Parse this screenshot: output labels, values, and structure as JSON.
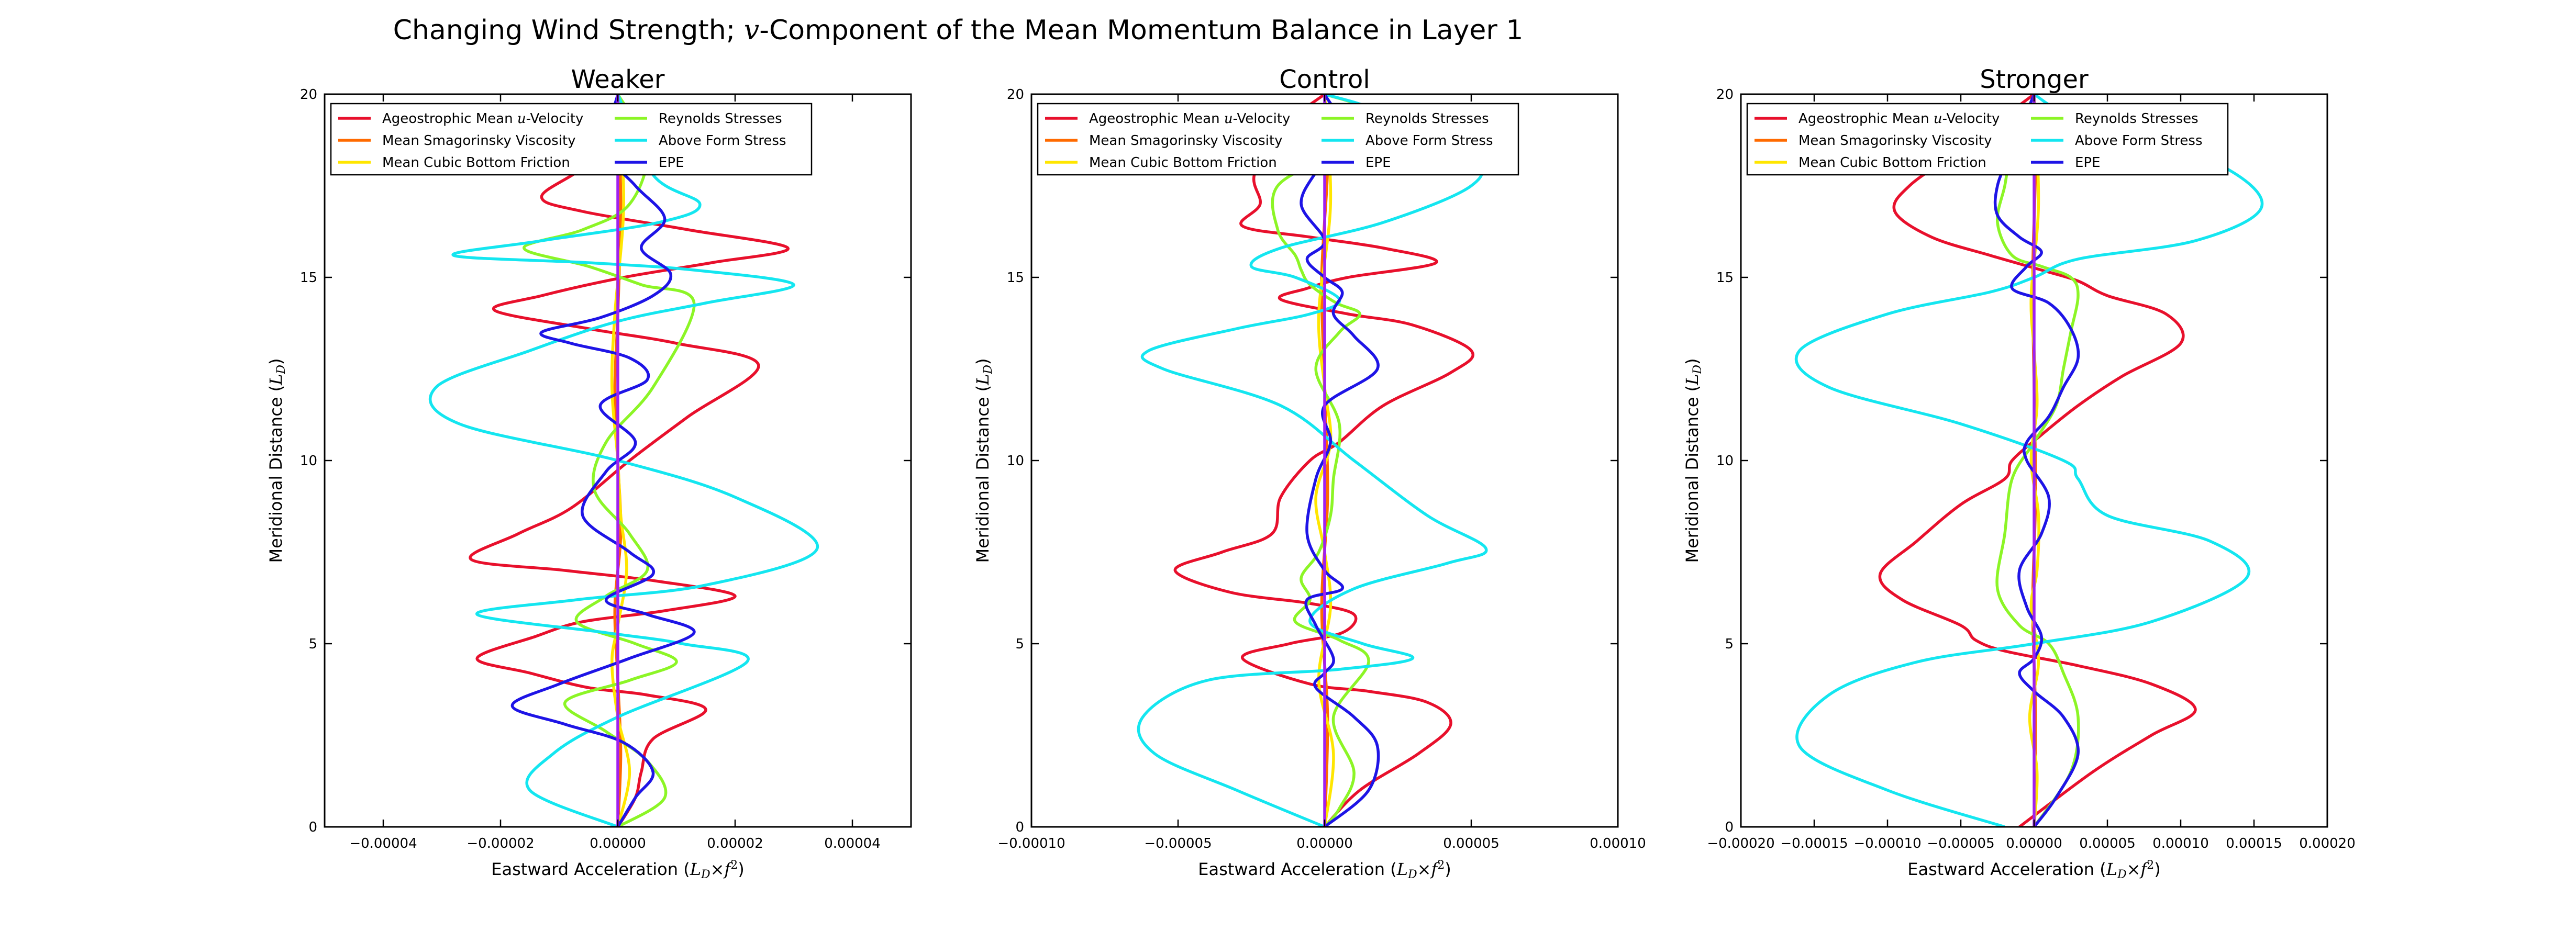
{
  "figure": {
    "title_pre": "Changing Wind Strength; ",
    "title_var": "v",
    "title_post": "-Component of the Mean Momentum Balance in Layer 1"
  },
  "colors": {
    "Ageostrophic Mean u-Velocity": "#e8102c",
    "Mean Smagorinsky Viscosity": "#ff6a00",
    "Mean Cubic Bottom Friction": "#ffe600",
    "Reynolds Stresses": "#8cf526",
    "Above Form Stress": "#14e6f0",
    "EPE": "#1e14e6",
    "zero": "#a020f0"
  },
  "chart_data": [
    {
      "type": "line",
      "title": "Weaker",
      "xlabel": "Eastward Acceleration",
      "xunit": "(L_D × f²)",
      "ylabel": "Meridional Distance",
      "yunit": "(L_D)",
      "xlim": [
        -5e-05,
        5e-05
      ],
      "ylim": [
        0,
        20
      ],
      "xticks": [
        -4e-05,
        -2e-05,
        0.0,
        2e-05,
        4e-05
      ],
      "xtick_labels": [
        "−0.00004",
        "−0.00002",
        "0.00000",
        "0.00002",
        "0.00004"
      ],
      "yticks": [
        0,
        5,
        10,
        15,
        20
      ],
      "ytick_labels": [
        "0",
        "5",
        "10",
        "15",
        "20"
      ],
      "legend_position": "top-left",
      "series": [
        {
          "name": "Ageostrophic Mean u-Velocity",
          "x_scaled": [
            0.0,
            0.3,
            0.4,
            0.6,
            1.5,
            0.5,
            -0.5,
            -1.5,
            -2.4,
            -1.4,
            -0.6,
            0.8,
            2.0,
            0.7,
            -0.9,
            -2.5,
            -1.7,
            -0.8,
            0.2,
            1.2,
            2.4,
            1.0,
            -0.5,
            -2.1,
            -1.3,
            0.1,
            1.6,
            2.9,
            1.2,
            -0.6,
            -1.3,
            -0.6,
            -0.1,
            0.0
          ],
          "y": [
            0.0,
            0.8,
            1.5,
            2.4,
            3.2,
            3.6,
            3.8,
            4.2,
            4.6,
            5.2,
            5.6,
            5.9,
            6.3,
            6.7,
            7.0,
            7.3,
            8.0,
            8.7,
            10.0,
            11.2,
            12.6,
            13.2,
            13.6,
            14.1,
            14.5,
            15.0,
            15.4,
            15.8,
            16.3,
            16.8,
            17.2,
            18.0,
            19.0,
            20.0
          ]
        },
        {
          "name": "Mean Smagorinsky Viscosity",
          "x_scaled": [
            0.0,
            0.05,
            0.0,
            -0.05,
            0.05,
            0.0,
            -0.05,
            0.0,
            0.05,
            0.0
          ],
          "y": [
            0.0,
            2.0,
            4.0,
            6.0,
            8.0,
            10.0,
            12.0,
            14.0,
            17.0,
            20.0
          ]
        },
        {
          "name": "Mean Cubic Bottom Friction",
          "x_scaled": [
            0.0,
            0.2,
            0.0,
            -0.1,
            0.0,
            0.15,
            0.05,
            0.0,
            -0.1,
            -0.05,
            0.1,
            0.0
          ],
          "y": [
            0.0,
            1.5,
            3.0,
            4.5,
            5.5,
            7.0,
            8.5,
            10.0,
            12.0,
            14.0,
            17.0,
            20.0
          ]
        },
        {
          "name": "Reynolds Stresses",
          "x_scaled": [
            0.0,
            0.8,
            0.5,
            -0.2,
            -0.9,
            0.2,
            1.0,
            0.3,
            -0.7,
            -0.2,
            0.5,
            0.2,
            -0.4,
            -0.2,
            0.6,
            1.3,
            0.4,
            -0.5,
            -1.6,
            -0.6,
            0.2,
            0.5,
            0.0
          ],
          "y": [
            0.0,
            0.8,
            1.8,
            2.6,
            3.4,
            4.0,
            4.5,
            5.0,
            5.6,
            6.3,
            7.0,
            8.0,
            9.2,
            10.5,
            12.0,
            14.3,
            14.8,
            15.3,
            15.8,
            16.3,
            17.0,
            18.5,
            20.0
          ]
        },
        {
          "name": "Above Form Stress",
          "x_scaled": [
            0.0,
            -1.5,
            -1.1,
            0.0,
            2.2,
            1.1,
            -0.2,
            -2.4,
            -0.7,
            1.5,
            3.4,
            2.0,
            0.0,
            -2.7,
            -3.1,
            -1.5,
            0.0,
            1.5,
            3.0,
            1.3,
            -0.5,
            -2.8,
            -1.3,
            0.7,
            1.4,
            0.6,
            0.0
          ],
          "y": [
            0.0,
            1.0,
            2.0,
            3.0,
            4.5,
            5.0,
            5.3,
            5.8,
            6.2,
            6.6,
            7.6,
            9.0,
            10.0,
            11.0,
            12.0,
            13.0,
            13.8,
            14.3,
            14.8,
            15.2,
            15.4,
            15.6,
            16.0,
            16.5,
            17.0,
            17.8,
            20.0
          ]
        },
        {
          "name": "EPE",
          "x_scaled": [
            0.0,
            0.3,
            0.6,
            0.1,
            -0.9,
            -1.8,
            -1.0,
            0.2,
            1.3,
            0.5,
            -0.2,
            0.6,
            0.2,
            -0.6,
            -0.2,
            0.3,
            -0.3,
            0.5,
            0.2,
            -0.8,
            -1.3,
            -0.3,
            0.6,
            0.9,
            0.4,
            0.8,
            0.3,
            -0.2,
            0.0
          ],
          "y": [
            0.0,
            0.8,
            1.5,
            2.3,
            2.8,
            3.3,
            3.9,
            4.6,
            5.3,
            5.8,
            6.2,
            6.9,
            7.5,
            8.5,
            9.7,
            10.5,
            11.5,
            12.2,
            12.8,
            13.2,
            13.5,
            13.9,
            14.5,
            15.1,
            15.8,
            16.6,
            17.5,
            18.5,
            20.0
          ]
        }
      ]
    },
    {
      "type": "line",
      "title": "Control",
      "xlabel": "Eastward Acceleration",
      "xunit": "(L_D × f²)",
      "ylabel": "Meridional Distance",
      "yunit": "(L_D)",
      "xlim": [
        -0.0001,
        0.0001
      ],
      "ylim": [
        0,
        20
      ],
      "xticks": [
        -0.0001,
        -5e-05,
        0.0,
        5e-05,
        0.0001
      ],
      "xtick_labels": [
        "−0.00010",
        "−0.00005",
        "0.00000",
        "0.00005",
        "0.00010"
      ],
      "yticks": [
        0,
        5,
        10,
        15,
        20
      ],
      "ytick_labels": [
        "0",
        "5",
        "10",
        "15",
        "20"
      ],
      "legend_position": "top-left",
      "series": [
        {
          "name": "Ageostrophic Mean u-Velocity",
          "x_scaled": [
            0.0,
            1.2,
            3.2,
            4.3,
            3.5,
            1.5,
            -0.5,
            -2.8,
            -1.2,
            0.6,
            1.0,
            -0.5,
            -3.2,
            -5.1,
            -3.5,
            -1.8,
            -1.5,
            -0.5,
            0.5,
            2.0,
            4.3,
            5.0,
            3.0,
            0.8,
            -1.5,
            -0.6,
            0.8,
            3.8,
            2.0,
            -0.5,
            -2.8,
            -2.2,
            -2.4,
            -1.6,
            0.0
          ],
          "y": [
            0.0,
            1.0,
            2.0,
            2.8,
            3.4,
            3.7,
            3.9,
            4.6,
            5.0,
            5.3,
            5.8,
            6.1,
            6.4,
            7.0,
            7.5,
            8.0,
            9.0,
            10.0,
            10.5,
            11.5,
            12.4,
            13.0,
            13.7,
            14.0,
            14.4,
            14.7,
            15.0,
            15.4,
            15.8,
            16.1,
            16.4,
            17.0,
            17.8,
            19.0,
            20.0
          ]
        },
        {
          "name": "Mean Smagorinsky Viscosity",
          "x_scaled": [
            0.0,
            0.1,
            -0.1,
            0.1,
            0.0,
            -0.1,
            0.1,
            0.0
          ],
          "y": [
            0.0,
            3.0,
            6.0,
            9.0,
            12.0,
            15.0,
            18.0,
            20.0
          ]
        },
        {
          "name": "Mean Cubic Bottom Friction",
          "x_scaled": [
            0.0,
            0.3,
            -0.2,
            0.2,
            0.0,
            -0.3,
            0.2,
            0.0,
            -0.2,
            0.2,
            0.0
          ],
          "y": [
            0.0,
            2.0,
            4.0,
            6.0,
            7.5,
            9.0,
            10.5,
            12.0,
            14.0,
            17.0,
            20.0
          ]
        },
        {
          "name": "Reynolds Stresses",
          "x_scaled": [
            0.0,
            0.5,
            1.0,
            0.3,
            1.5,
            0.5,
            -1.0,
            -0.5,
            -0.8,
            -0.2,
            0.2,
            0.3,
            0.5,
            -0.3,
            0.5,
            1.2,
            0.4,
            -0.5,
            -0.8,
            -1.0,
            -1.6,
            -1.6,
            0.5,
            1.5,
            0.0
          ],
          "y": [
            0.0,
            0.5,
            1.5,
            3.0,
            4.5,
            5.1,
            5.6,
            6.2,
            6.8,
            7.5,
            8.5,
            9.5,
            11.0,
            12.5,
            13.5,
            14.0,
            14.3,
            14.8,
            15.2,
            15.6,
            16.3,
            17.5,
            18.5,
            19.5,
            20.0
          ]
        },
        {
          "name": "Above Form Stress",
          "x_scaled": [
            0.0,
            -3.0,
            -5.8,
            -6.2,
            -4.0,
            0.5,
            3.0,
            1.3,
            -0.5,
            1.0,
            4.2,
            5.5,
            3.5,
            1.0,
            -1.5,
            -5.5,
            -6.0,
            -3.0,
            -0.5,
            0.5,
            -1.0,
            -2.5,
            -1.5,
            2.0,
            5.0,
            5.0,
            2.0,
            0.0
          ],
          "y": [
            0.0,
            1.0,
            2.0,
            3.0,
            4.0,
            4.3,
            4.6,
            5.0,
            5.6,
            6.5,
            7.2,
            7.6,
            8.5,
            10.0,
            11.5,
            12.5,
            13.0,
            13.6,
            14.0,
            14.4,
            15.0,
            15.3,
            15.8,
            16.5,
            17.5,
            18.3,
            19.5,
            20.0
          ]
        },
        {
          "name": "EPE",
          "x_scaled": [
            0.0,
            1.5,
            1.8,
            1.0,
            -0.3,
            0.0,
            0.3,
            -0.3,
            -0.6,
            0.6,
            0.0,
            -0.6,
            -0.3,
            0.2,
            0.0,
            1.8,
            1.0,
            0.3,
            0.6,
            0.0,
            -0.6,
            0.0,
            -0.8,
            -0.2,
            0.6,
            0.0
          ],
          "y": [
            0.0,
            1.0,
            2.2,
            3.0,
            3.8,
            4.2,
            4.6,
            5.5,
            6.2,
            6.5,
            7.0,
            8.0,
            9.5,
            10.5,
            11.5,
            12.5,
            13.4,
            14.0,
            14.6,
            15.0,
            15.5,
            16.0,
            17.0,
            18.0,
            19.0,
            20.0
          ]
        }
      ]
    },
    {
      "type": "line",
      "title": "Stronger",
      "xlabel": "Eastward Acceleration",
      "xunit": "(L_D × f²)",
      "ylabel": "Meridional Distance",
      "yunit": "(L_D)",
      "xlim": [
        -0.0002,
        0.0002
      ],
      "ylim": [
        0,
        20
      ],
      "xticks": [
        -0.0002,
        -0.00015,
        -0.0001,
        -5e-05,
        0.0,
        5e-05,
        0.0001,
        0.00015,
        0.0002
      ],
      "xtick_labels": [
        "−0.00020",
        "−0.00015",
        "−0.00010",
        "−0.00005",
        "0.00000",
        "0.00005",
        "0.00010",
        "0.00015",
        "0.00020"
      ],
      "yticks": [
        0,
        5,
        10,
        15,
        20
      ],
      "ytick_labels": [
        "0",
        "5",
        "10",
        "15",
        "20"
      ],
      "legend_position": "top-left",
      "series": [
        {
          "name": "Ageostrophic Mean u-Velocity",
          "x_scaled": [
            -1.0,
            4.0,
            8.0,
            11.0,
            8.0,
            3.0,
            -2.0,
            -4.0,
            -5.0,
            -9.0,
            -10.5,
            -8.0,
            -5.0,
            -2.0,
            -1.5,
            0.5,
            3.0,
            6.0,
            10.0,
            9.0,
            5.0,
            3.0,
            0.5,
            -3.0,
            -7.0,
            -9.5,
            -8.5,
            -5.0,
            0.0
          ],
          "y": [
            0.0,
            1.5,
            2.5,
            3.2,
            3.9,
            4.4,
            4.8,
            5.1,
            5.5,
            6.2,
            6.9,
            7.8,
            8.8,
            9.5,
            10.0,
            10.7,
            11.5,
            12.3,
            13.2,
            14.0,
            14.5,
            14.9,
            15.2,
            15.6,
            16.1,
            16.8,
            17.5,
            18.5,
            20.0
          ]
        },
        {
          "name": "Mean Smagorinsky Viscosity",
          "x_scaled": [
            0.0,
            0.1,
            -0.1,
            0.1,
            0.0,
            -0.1,
            0.1,
            0.0
          ],
          "y": [
            0.0,
            3.0,
            6.0,
            9.0,
            12.0,
            15.0,
            18.0,
            20.0
          ]
        },
        {
          "name": "Mean Cubic Bottom Friction",
          "x_scaled": [
            0.0,
            0.2,
            -0.3,
            0.3,
            -0.2,
            0.2,
            0.3,
            -0.2,
            0.2,
            0.0,
            -0.2,
            0.3,
            0.0
          ],
          "y": [
            0.0,
            1.5,
            3.0,
            4.5,
            6.0,
            7.0,
            8.5,
            10.0,
            11.5,
            13.0,
            14.5,
            17.0,
            20.0
          ]
        },
        {
          "name": "Reynolds Stresses",
          "x_scaled": [
            0.0,
            2.5,
            3.0,
            2.0,
            1.0,
            -1.0,
            -2.5,
            -2.0,
            -1.5,
            0.0,
            1.5,
            2.0,
            2.5,
            3.0,
            2.5,
            0.5,
            -1.5,
            -2.5,
            -2.0,
            -1.5,
            0.0
          ],
          "y": [
            0.0,
            1.5,
            3.0,
            4.2,
            5.0,
            5.5,
            6.5,
            8.0,
            9.5,
            10.5,
            11.5,
            12.5,
            13.5,
            14.5,
            15.0,
            15.3,
            15.6,
            16.5,
            17.5,
            18.5,
            20.0
          ]
        },
        {
          "name": "Above Form Stress",
          "x_scaled": [
            -2.0,
            -10.0,
            -16.0,
            -14.0,
            -8.0,
            0.0,
            8.0,
            14.5,
            12.0,
            5.0,
            3.0,
            2.0,
            -5.0,
            -14.0,
            -16.0,
            -10.0,
            -3.0,
            0.0,
            3.0,
            11.0,
            15.5,
            13.0,
            6.0,
            2.0,
            0.0
          ],
          "y": [
            0.0,
            1.0,
            2.2,
            3.6,
            4.5,
            5.0,
            5.6,
            6.8,
            7.8,
            8.5,
            9.5,
            10.0,
            11.0,
            12.0,
            13.0,
            14.0,
            14.6,
            15.0,
            15.5,
            16.0,
            16.9,
            18.0,
            19.0,
            19.5,
            20.0
          ]
        },
        {
          "name": "EPE",
          "x_scaled": [
            0.0,
            1.5,
            3.0,
            2.0,
            0.0,
            -1.0,
            0.0,
            0.5,
            -0.5,
            -1.0,
            0.5,
            1.0,
            -0.5,
            -0.5,
            1.0,
            2.0,
            3.0,
            2.5,
            1.0,
            -1.5,
            -0.5,
            0.5,
            -1.0,
            -2.5,
            -2.5,
            -1.5,
            0.0
          ],
          "y": [
            0.0,
            0.8,
            2.0,
            3.0,
            3.7,
            4.2,
            4.6,
            5.2,
            6.0,
            7.0,
            8.0,
            9.0,
            10.0,
            10.5,
            11.2,
            12.0,
            12.8,
            13.6,
            14.3,
            14.7,
            15.3,
            15.7,
            16.1,
            16.7,
            17.5,
            18.5,
            20.0
          ]
        }
      ],
      "x_scaled_unit": 1e-05
    }
  ]
}
